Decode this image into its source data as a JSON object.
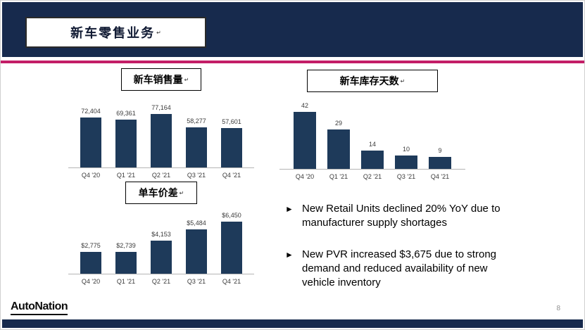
{
  "slide": {
    "title": "新车零售业务",
    "paragraph_mark": "↵",
    "page_number": "8",
    "logo_text": "AutoNation"
  },
  "colors": {
    "navy": "#172a4d",
    "pink": "#c31e67",
    "bar": "#1e3a5a"
  },
  "chart_data": [
    {
      "type": "bar",
      "title": "新车销售量",
      "categories": [
        "Q4 '20",
        "Q1 '21",
        "Q2 '21",
        "Q3 '21",
        "Q4 '21"
      ],
      "values": [
        72404,
        69361,
        77164,
        58277,
        57601
      ],
      "labels": [
        "72,404",
        "69,361",
        "77,164",
        "58,277",
        "57,601"
      ],
      "ylim": [
        0,
        77164
      ],
      "grid": false,
      "legend": "none"
    },
    {
      "type": "bar",
      "title": "新车库存天数",
      "categories": [
        "Q4 '20",
        "Q1 '21",
        "Q2 '21",
        "Q3 '21",
        "Q4 '21"
      ],
      "values": [
        42,
        29,
        14,
        10,
        9
      ],
      "labels": [
        "42",
        "29",
        "14",
        "10",
        "9"
      ],
      "ylim": [
        0,
        42
      ],
      "grid": false,
      "legend": "none"
    },
    {
      "type": "bar",
      "title": "单车价差",
      "categories": [
        "Q4 '20",
        "Q1 '21",
        "Q2 '21",
        "Q3 '21",
        "Q4 '21"
      ],
      "values": [
        2775,
        2739,
        4153,
        5484,
        6450
      ],
      "labels": [
        "$2,775",
        "$2,739",
        "$4,153",
        "$5,484",
        "$6,450"
      ],
      "ylim": [
        0,
        6450
      ],
      "grid": false,
      "legend": "none"
    }
  ],
  "bullets": {
    "marker": "►",
    "items": [
      "New Retail Units declined 20% YoY due to manufacturer supply shortages",
      "New PVR increased $3,675 due to strong demand and reduced availability of new vehicle inventory"
    ]
  }
}
